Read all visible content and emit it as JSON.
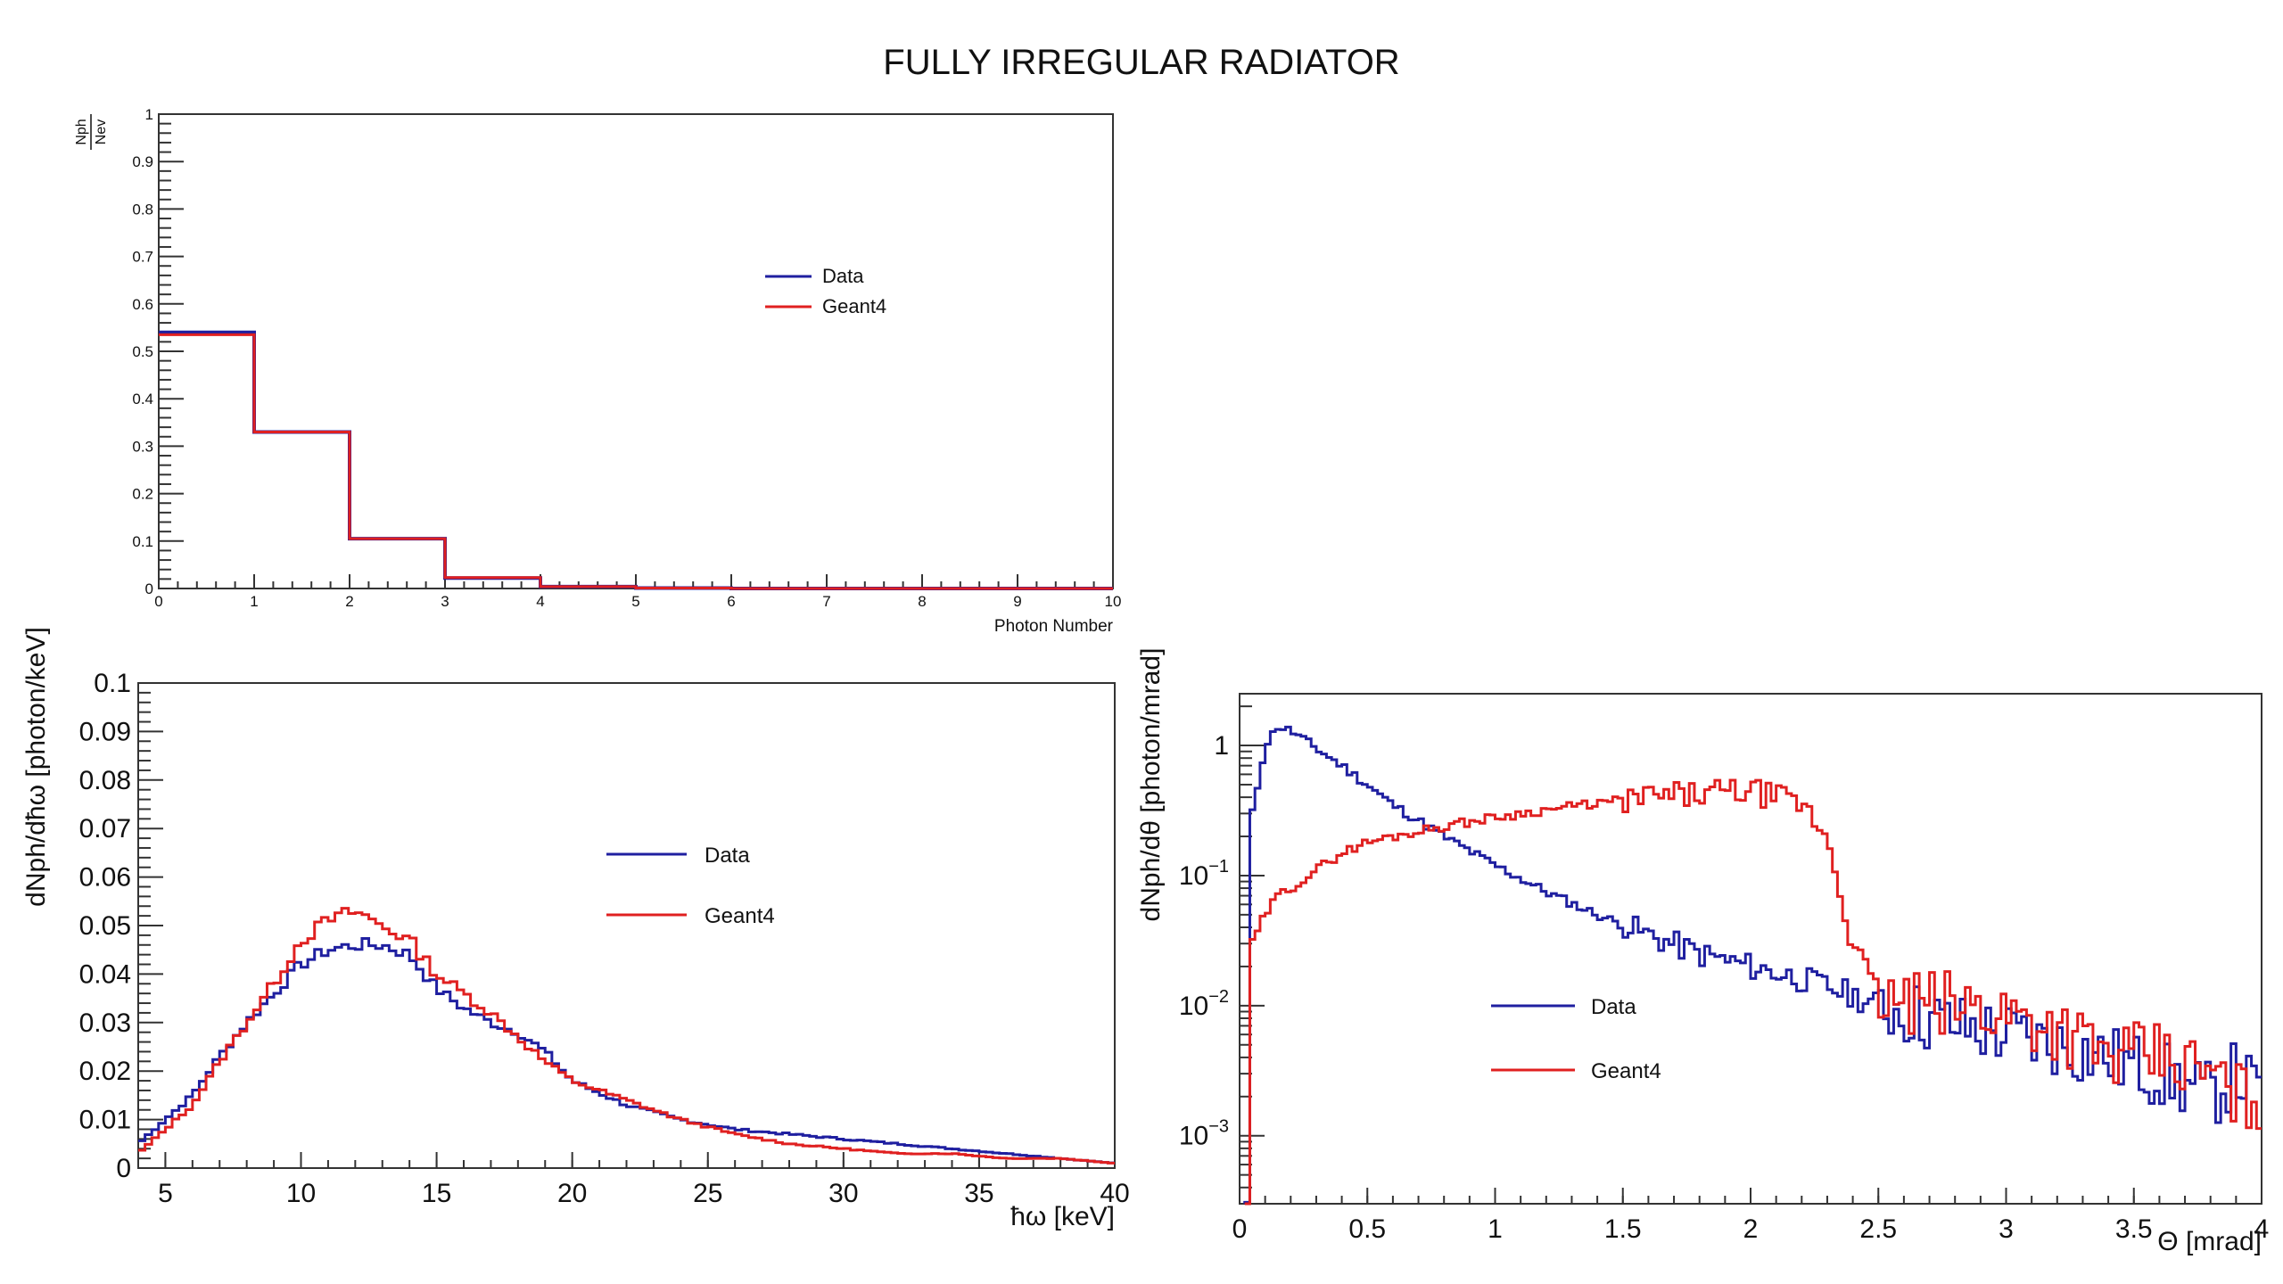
{
  "title": "FULLY IRREGULAR RADIATOR",
  "colors": {
    "data": "#1f1fa0",
    "geant4": "#e02020",
    "axis": "#333333"
  },
  "chart_data": [
    {
      "type": "line",
      "id": "photon-number",
      "xlabel": "Photon Number",
      "ylabel": "Nph/Nev",
      "ylabel_num": "Nph",
      "ylabel_den": "Nev",
      "xlim": [
        0,
        10
      ],
      "ylim": [
        0,
        1
      ],
      "xticks": [
        "0",
        "1",
        "2",
        "3",
        "4",
        "5",
        "6",
        "7",
        "8",
        "9",
        "10"
      ],
      "yticks": [
        "0",
        "0.1",
        "0.2",
        "0.3",
        "0.4",
        "0.5",
        "0.6",
        "0.7",
        "0.8",
        "0.9",
        "1"
      ],
      "bin_edges": [
        0,
        1,
        2,
        3,
        4,
        5,
        6,
        7,
        8,
        9,
        10
      ],
      "series": [
        {
          "name": "Data",
          "values": [
            0.54,
            0.33,
            0.105,
            0.022,
            0.004,
            0.001,
            0,
            0,
            0,
            0
          ]
        },
        {
          "name": "Geant4",
          "values": [
            0.535,
            0.33,
            0.105,
            0.023,
            0.004,
            0.001,
            0,
            0,
            0,
            0
          ]
        }
      ],
      "legend": "center-right"
    },
    {
      "type": "line",
      "id": "energy-spectrum",
      "xlabel": "ħω  [keV]",
      "ylabel": "dNph/dħω [photon/keV]",
      "xlim": [
        4,
        40
      ],
      "ylim": [
        0,
        0.1
      ],
      "xticks": [
        "5",
        "10",
        "15",
        "20",
        "25",
        "30",
        "35",
        "40"
      ],
      "yticks": [
        "0",
        "0.01",
        "0.02",
        "0.03",
        "0.04",
        "0.05",
        "0.06",
        "0.07",
        "0.08",
        "0.09",
        "0.1"
      ],
      "x": [
        4,
        5,
        6,
        7,
        8,
        9,
        10,
        11,
        12,
        13,
        14,
        15,
        16,
        17,
        18,
        19,
        20,
        22,
        24,
        26,
        28,
        30,
        32,
        34,
        36,
        38,
        40
      ],
      "series": [
        {
          "name": "Data",
          "values": [
            0.005,
            0.01,
            0.015,
            0.023,
            0.03,
            0.036,
            0.042,
            0.045,
            0.046,
            0.046,
            0.044,
            0.037,
            0.033,
            0.03,
            0.028,
            0.024,
            0.018,
            0.013,
            0.01,
            0.008,
            0.007,
            0.006,
            0.005,
            0.004,
            0.003,
            0.002,
            0.001
          ]
        },
        {
          "name": "Geant4",
          "values": [
            0.003,
            0.008,
            0.013,
            0.022,
            0.03,
            0.038,
            0.047,
            0.051,
            0.053,
            0.05,
            0.047,
            0.04,
            0.036,
            0.032,
            0.027,
            0.022,
            0.018,
            0.014,
            0.01,
            0.007,
            0.005,
            0.004,
            0.003,
            0.003,
            0.002,
            0.002,
            0.001
          ]
        }
      ],
      "legend": "center"
    },
    {
      "type": "line",
      "id": "angular-distribution",
      "xlabel": "Θ [mrad]",
      "ylabel": "dNph/dθ [photon/mrad]",
      "xlim": [
        0,
        4
      ],
      "ylim": [
        0.0003,
        2.5
      ],
      "yscale": "log",
      "xticks": [
        "0",
        "0.5",
        "1",
        "1.5",
        "2",
        "2.5",
        "3",
        "3.5",
        "4"
      ],
      "yticks": [
        {
          "value": 1,
          "base": "1",
          "exp": ""
        },
        {
          "value": 0.1,
          "base": "10",
          "exp": "−1"
        },
        {
          "value": 0.01,
          "base": "10",
          "exp": "−2"
        },
        {
          "value": 0.001,
          "base": "10",
          "exp": "−3"
        }
      ],
      "x": [
        0.03,
        0.05,
        0.1,
        0.15,
        0.2,
        0.3,
        0.4,
        0.5,
        0.6,
        0.8,
        1.0,
        1.2,
        1.4,
        1.6,
        1.8,
        2.0,
        2.2,
        2.3,
        2.4,
        2.5,
        2.6,
        2.8,
        3.0,
        3.2,
        3.4,
        3.6,
        3.8,
        3.9,
        4.0
      ],
      "series": [
        {
          "name": "Data",
          "values": [
            0.0003,
            0.3,
            1.0,
            1.4,
            1.3,
            0.95,
            0.7,
            0.5,
            0.35,
            0.2,
            0.12,
            0.075,
            0.05,
            0.035,
            0.025,
            0.02,
            0.016,
            0.014,
            0.012,
            0.01,
            0.009,
            0.007,
            0.006,
            0.005,
            0.004,
            0.003,
            0.002,
            0.003,
            0.002
          ]
        },
        {
          "name": "Geant4",
          "values": [
            0.0003,
            0.03,
            0.05,
            0.07,
            0.08,
            0.11,
            0.15,
            0.18,
            0.2,
            0.24,
            0.28,
            0.32,
            0.36,
            0.4,
            0.42,
            0.45,
            0.35,
            0.2,
            0.03,
            0.012,
            0.01,
            0.01,
            0.009,
            0.007,
            0.004,
            0.004,
            0.003,
            0.002,
            0.002
          ]
        }
      ],
      "legend": "center"
    }
  ]
}
